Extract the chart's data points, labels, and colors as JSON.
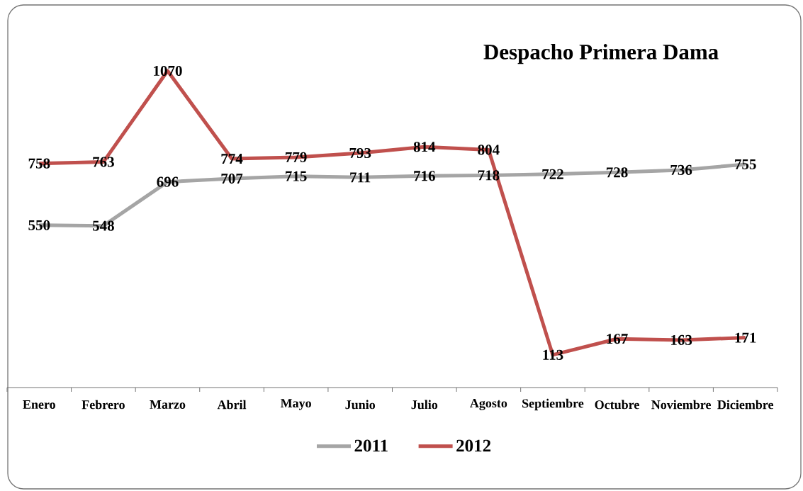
{
  "chart_data": {
    "type": "line",
    "title": "Despacho Primera Dama",
    "categories": [
      "Enero",
      "Febrero",
      "Marzo",
      "Abril",
      "Mayo",
      "Junio",
      "Julio",
      "Agosto",
      "Septiembre",
      "Octubre",
      "Noviembre",
      "Diciembre"
    ],
    "series": [
      {
        "name": "2011",
        "color": "#a5a5a5",
        "values": [
          550,
          548,
          696,
          707,
          715,
          711,
          716,
          718,
          722,
          728,
          736,
          755
        ]
      },
      {
        "name": "2012",
        "color": "#c0504d",
        "values": [
          758,
          763,
          1070,
          774,
          779,
          793,
          814,
          804,
          113,
          167,
          163,
          171
        ]
      }
    ],
    "tick_labels": "x",
    "data_labels": true,
    "legend": "bottom",
    "marker": "none",
    "line_style": "solid"
  }
}
